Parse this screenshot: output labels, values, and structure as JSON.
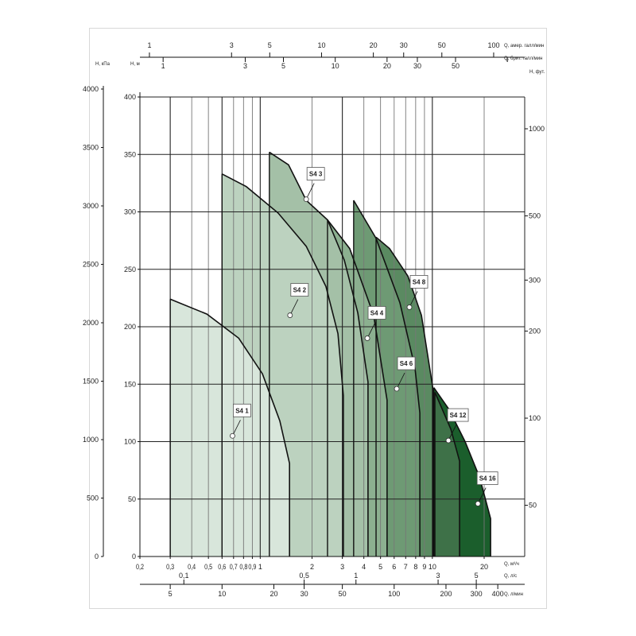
{
  "chart_data": {
    "type": "area",
    "title": "",
    "x_scale": "log",
    "xlim_m3h": [
      0.2,
      34
    ],
    "ylim_m": [
      0,
      400
    ],
    "grid": true,
    "axes": {
      "bottom_m3h": {
        "unit": "Q, м³/ч",
        "ticks": [
          0.2,
          0.3,
          0.4,
          0.5,
          0.6,
          0.7,
          0.8,
          0.9,
          1,
          2,
          3,
          4,
          5,
          6,
          7,
          8,
          9,
          10,
          20
        ],
        "tick_labels": [
          "0,2",
          "0,3",
          "0,4",
          "0,5",
          "0,6",
          "0,7",
          "0,8",
          "0,9",
          "1",
          "2",
          "3",
          "4",
          "5",
          "6",
          "7",
          "8",
          "9",
          "10",
          "20"
        ]
      },
      "bottom_ls": {
        "unit": "Q, л/с",
        "ticks": [
          0.1,
          0.5,
          1,
          3,
          5
        ],
        "tick_labels": [
          "0,1",
          "0,5",
          "1",
          "3",
          "5"
        ]
      },
      "bottom_lmin": {
        "unit": "Q, л/мин",
        "ticks": [
          5,
          10,
          20,
          30,
          50,
          100,
          200,
          300,
          400
        ],
        "tick_labels": [
          "5",
          "10",
          "20",
          "30",
          "50",
          "100",
          "200",
          "300",
          "400"
        ]
      },
      "top_usgpm": {
        "unit": "Q, амер. галл/мин",
        "ticks": [
          1,
          3,
          5,
          10,
          20,
          30,
          50,
          100
        ],
        "tick_labels": [
          "1",
          "3",
          "5",
          "10",
          "20",
          "30",
          "50",
          "100"
        ]
      },
      "top_ukgpm": {
        "unit": "Q, брит. галл/мин",
        "ticks": [
          1,
          3,
          5,
          10,
          20,
          30,
          50,
          100
        ],
        "tick_labels": [
          "1",
          "3",
          "5",
          "10",
          "20",
          "30",
          "50",
          ""
        ]
      },
      "left_kpa": {
        "unit": "H, кПа",
        "ticks": [
          0,
          500,
          1000,
          1500,
          2000,
          2500,
          3000,
          3500,
          4000
        ],
        "tick_labels": [
          "0",
          "500",
          "1000",
          "1500",
          "2000",
          "2500",
          "3000",
          "3500",
          "4000"
        ]
      },
      "left_m": {
        "unit": "H, м",
        "ticks": [
          0,
          50,
          100,
          150,
          200,
          250,
          300,
          350,
          400
        ],
        "tick_labels": [
          "0",
          "50",
          "100",
          "150",
          "200",
          "250",
          "300",
          "350",
          "400"
        ]
      },
      "right_ft": {
        "unit": "H, фут.",
        "scale": "log",
        "ticks": [
          50,
          100,
          200,
          300,
          500,
          1000
        ],
        "tick_labels": [
          "50",
          "100",
          "200",
          "300",
          "500",
          "1000"
        ]
      }
    },
    "series": [
      {
        "name": "S4 16",
        "color": "#1b5e2c",
        "points": [
          [
            10.2,
            147
          ],
          [
            12.5,
            128
          ],
          [
            15.5,
            100
          ],
          [
            18.8,
            69
          ],
          [
            21.8,
            33
          ],
          [
            21.8,
            0
          ]
        ],
        "marker": [
          18.4,
          46
        ]
      },
      {
        "name": "S4 12",
        "color": "#3e7148",
        "points": [
          [
            10.35,
            143
          ],
          [
            12.8,
            111
          ],
          [
            14.4,
            83
          ],
          [
            14.4,
            0
          ]
        ],
        "marker": [
          12.4,
          101
        ]
      },
      {
        "name": "S4 8",
        "color": "#5a8a61",
        "points": [
          [
            4.71,
            278
          ],
          [
            5.64,
            268
          ],
          [
            7.21,
            244
          ],
          [
            8.64,
            210
          ],
          [
            10.1,
            145
          ],
          [
            10.1,
            0
          ]
        ],
        "marker": [
          7.36,
          217
        ]
      },
      {
        "name": "S4 6",
        "color": "#6e9a74",
        "points": [
          [
            3.49,
            310
          ],
          [
            4.71,
            277
          ],
          [
            6.48,
            221
          ],
          [
            7.93,
            164
          ],
          [
            8.46,
            125
          ],
          [
            8.46,
            0
          ]
        ],
        "marker": [
          6.21,
          146
        ]
      },
      {
        "name": "S4 4",
        "color": "#8cb090",
        "points": [
          [
            2.46,
            293
          ],
          [
            3.31,
            268
          ],
          [
            4.56,
            210
          ],
          [
            5.46,
            136
          ],
          [
            5.46,
            0
          ]
        ],
        "marker": [
          4.19,
          190
        ]
      },
      {
        "name": "S4 3",
        "color": "#a4c0a7",
        "points": [
          [
            1.13,
            352
          ],
          [
            1.46,
            341
          ],
          [
            1.85,
            310
          ],
          [
            2.46,
            293
          ],
          [
            3.08,
            258
          ],
          [
            3.69,
            212
          ],
          [
            4.23,
            152
          ],
          [
            4.23,
            0
          ]
        ],
        "marker": [
          1.85,
          311
        ]
      },
      {
        "name": "S4 2",
        "color": "#bcd2bf",
        "points": [
          [
            0.6,
            333
          ],
          [
            0.83,
            322
          ],
          [
            1.27,
            299
          ],
          [
            1.85,
            270
          ],
          [
            2.41,
            235
          ],
          [
            2.83,
            194
          ],
          [
            3.04,
            140
          ],
          [
            3.04,
            0
          ]
        ],
        "marker": [
          1.49,
          210
        ]
      },
      {
        "name": "S4 1",
        "color": "#d8e6db",
        "points": [
          [
            0.3,
            224
          ],
          [
            0.49,
            211
          ],
          [
            0.75,
            190
          ],
          [
            1.03,
            159
          ],
          [
            1.3,
            118
          ],
          [
            1.48,
            81
          ],
          [
            1.48,
            0
          ]
        ],
        "marker": [
          0.69,
          105
        ]
      }
    ]
  }
}
